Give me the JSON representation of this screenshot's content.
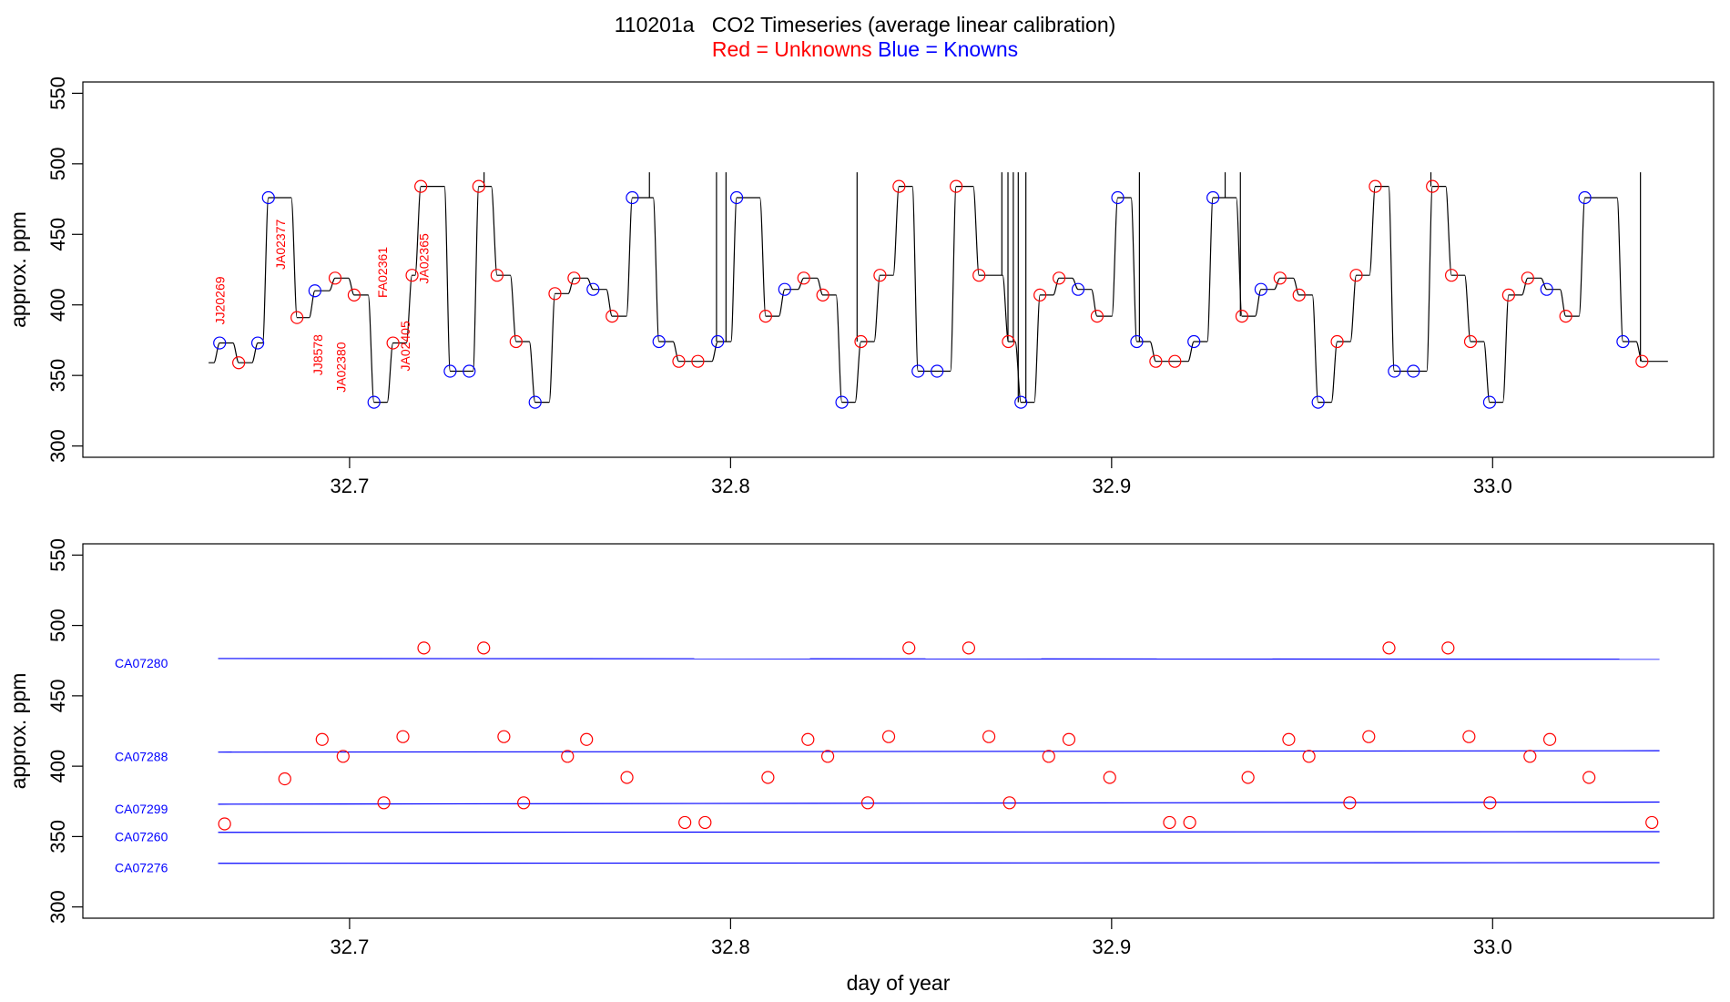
{
  "title": {
    "main": "110201a   CO2 Timeseries (average linear calibration)",
    "legend_red": "Red = Unknowns",
    "legend_blue": "Blue = Knowns"
  },
  "colors": {
    "unknown": "#ff0000",
    "known": "#0000ff",
    "trace": "#000000"
  },
  "chart_data": [
    {
      "type": "line",
      "id": "timeseries",
      "ylabel": "approx. ppm",
      "xlabel": "",
      "xlim": [
        32.63,
        33.058
      ],
      "ylim": [
        292,
        558
      ],
      "xticks": [
        {
          "v": 32.7,
          "label": "32.7"
        },
        {
          "v": 32.8,
          "label": "32.8"
        },
        {
          "v": 32.9,
          "label": "32.9"
        },
        {
          "v": 33.0,
          "label": "33.0"
        }
      ],
      "yticks": [
        {
          "v": 300,
          "label": "300"
        },
        {
          "v": 350,
          "label": "350"
        },
        {
          "v": 400,
          "label": "400"
        },
        {
          "v": 450,
          "label": "450"
        },
        {
          "v": 500,
          "label": "500"
        },
        {
          "v": 550,
          "label": "550"
        }
      ],
      "trace_start": [
        32.663,
        359
      ],
      "trace_end": 33.046,
      "levels": [
        [
          32.6655,
          373,
          "known"
        ],
        [
          32.6705,
          359,
          "unknown"
        ],
        [
          32.6755,
          373,
          "known"
        ],
        [
          32.6783,
          476,
          "known"
        ],
        [
          32.6858,
          391,
          "unknown"
        ],
        [
          32.6905,
          410,
          "known"
        ],
        [
          32.6958,
          419,
          "unknown"
        ],
        [
          32.7008,
          407,
          "unknown"
        ],
        [
          32.706,
          331,
          "known"
        ],
        [
          32.711,
          373,
          "unknown"
        ],
        [
          32.716,
          421,
          "unknown"
        ],
        [
          32.7183,
          484,
          "unknown"
        ],
        [
          32.726,
          353,
          "known"
        ],
        [
          32.731,
          353,
          "known"
        ],
        [
          32.7335,
          484,
          "unknown"
        ],
        [
          32.7383,
          421,
          "unknown"
        ],
        [
          32.7433,
          374,
          "unknown"
        ],
        [
          32.7483,
          331,
          "known"
        ],
        [
          32.7535,
          408,
          "unknown"
        ],
        [
          32.7585,
          419,
          "unknown"
        ],
        [
          32.7635,
          411,
          "known"
        ],
        [
          32.7685,
          392,
          "unknown"
        ],
        [
          32.7738,
          476,
          "known"
        ],
        [
          32.7808,
          374,
          "known"
        ],
        [
          32.786,
          360,
          "unknown"
        ],
        [
          32.791,
          360,
          "unknown"
        ],
        [
          32.7962,
          374,
          "known"
        ],
        [
          32.8012,
          476,
          "known"
        ],
        [
          32.8088,
          392,
          "unknown"
        ],
        [
          32.8138,
          411,
          "known"
        ],
        [
          32.8188,
          419,
          "unknown"
        ],
        [
          32.8238,
          407,
          "unknown"
        ],
        [
          32.8288,
          331,
          "known"
        ],
        [
          32.8338,
          374,
          "unknown"
        ],
        [
          32.8388,
          421,
          "unknown"
        ],
        [
          32.8438,
          484,
          "unknown"
        ],
        [
          32.8488,
          353,
          "known"
        ],
        [
          32.8538,
          353,
          "known"
        ],
        [
          32.8588,
          484,
          "unknown"
        ],
        [
          32.8648,
          421,
          "unknown"
        ],
        [
          32.8725,
          374,
          "unknown"
        ],
        [
          32.8758,
          331,
          "known"
        ],
        [
          32.8808,
          407,
          "unknown"
        ],
        [
          32.8858,
          419,
          "unknown"
        ],
        [
          32.8908,
          411,
          "known"
        ],
        [
          32.8958,
          392,
          "unknown"
        ],
        [
          32.9012,
          476,
          "known"
        ],
        [
          32.9062,
          374,
          "known"
        ],
        [
          32.9112,
          360,
          "unknown"
        ],
        [
          32.9162,
          360,
          "unknown"
        ],
        [
          32.9212,
          374,
          "known"
        ],
        [
          32.9262,
          476,
          "known"
        ],
        [
          32.9338,
          392,
          "unknown"
        ],
        [
          32.9388,
          411,
          "known"
        ],
        [
          32.9438,
          419,
          "unknown"
        ],
        [
          32.9488,
          407,
          "unknown"
        ],
        [
          32.9538,
          331,
          "known"
        ],
        [
          32.9588,
          374,
          "unknown"
        ],
        [
          32.9638,
          421,
          "unknown"
        ],
        [
          32.9688,
          484,
          "unknown"
        ],
        [
          32.9738,
          353,
          "known"
        ],
        [
          32.9788,
          353,
          "known"
        ],
        [
          32.9838,
          484,
          "unknown"
        ],
        [
          32.9888,
          421,
          "unknown"
        ],
        [
          32.9938,
          374,
          "unknown"
        ],
        [
          32.9988,
          331,
          "known"
        ],
        [
          33.0038,
          407,
          "unknown"
        ],
        [
          33.0088,
          419,
          "unknown"
        ],
        [
          33.0138,
          411,
          "known"
        ],
        [
          33.0188,
          392,
          "unknown"
        ],
        [
          33.0238,
          476,
          "known"
        ],
        [
          33.0338,
          374,
          "known"
        ],
        [
          33.0388,
          360,
          "unknown"
        ]
      ],
      "spikes": [
        32.7353,
        32.7787,
        32.7963,
        32.7988,
        32.8332,
        32.8712,
        32.8728,
        32.8742,
        32.8755,
        32.8775,
        32.9073,
        32.9298,
        32.9338,
        32.9838,
        33.0388
      ],
      "sample_labels": [
        {
          "text": "JJ20269",
          "x": 32.6672,
          "y": 386
        },
        {
          "text": "JA02377",
          "x": 32.683,
          "y": 425
        },
        {
          "text": "JJ8578",
          "x": 32.6928,
          "y": 350
        },
        {
          "text": "JA02380",
          "x": 32.699,
          "y": 338
        },
        {
          "text": "FA02361",
          "x": 32.7098,
          "y": 405
        },
        {
          "text": "JA02405",
          "x": 32.7158,
          "y": 353
        },
        {
          "text": "JA02365",
          "x": 32.7207,
          "y": 415
        }
      ]
    },
    {
      "type": "scatter",
      "id": "unknowns-vs-standards",
      "ylabel": "approx. ppm",
      "xlabel": "day of year",
      "xlim": [
        32.63,
        33.058
      ],
      "ylim": [
        292,
        558
      ],
      "xticks": [
        {
          "v": 32.7,
          "label": "32.7"
        },
        {
          "v": 32.8,
          "label": "32.8"
        },
        {
          "v": 32.9,
          "label": "32.9"
        },
        {
          "v": 33.0,
          "label": "33.0"
        }
      ],
      "yticks": [
        {
          "v": 300,
          "label": "300"
        },
        {
          "v": 350,
          "label": "350"
        },
        {
          "v": 400,
          "label": "400"
        },
        {
          "v": 450,
          "label": "450"
        },
        {
          "v": 500,
          "label": "500"
        },
        {
          "v": 550,
          "label": "550"
        }
      ],
      "standards": [
        {
          "name": "CA07280",
          "y_start": 476.5,
          "y_end": 476
        },
        {
          "name": "CA07288",
          "y_start": 410,
          "y_end": 411
        },
        {
          "name": "CA07299",
          "y_start": 373,
          "y_end": 374.5
        },
        {
          "name": "CA07260",
          "y_start": 353,
          "y_end": 353.5
        },
        {
          "name": "CA07276",
          "y_start": 331,
          "y_end": 331.5
        }
      ],
      "standards_x": [
        32.6655,
        33.0438
      ],
      "unknowns": [
        [
          32.6672,
          359
        ],
        [
          32.683,
          391
        ],
        [
          32.6928,
          419
        ],
        [
          32.6983,
          407
        ],
        [
          32.709,
          374
        ],
        [
          32.714,
          421
        ],
        [
          32.7195,
          484
        ],
        [
          32.7352,
          484
        ],
        [
          32.7405,
          421
        ],
        [
          32.7457,
          374
        ],
        [
          32.7572,
          407
        ],
        [
          32.7622,
          419
        ],
        [
          32.7728,
          392
        ],
        [
          32.788,
          360
        ],
        [
          32.7933,
          360
        ],
        [
          32.8098,
          392
        ],
        [
          32.8203,
          419
        ],
        [
          32.8255,
          407
        ],
        [
          32.836,
          374
        ],
        [
          32.8415,
          421
        ],
        [
          32.8468,
          484
        ],
        [
          32.8625,
          484
        ],
        [
          32.8678,
          421
        ],
        [
          32.8732,
          374
        ],
        [
          32.8835,
          407
        ],
        [
          32.8888,
          419
        ],
        [
          32.8995,
          392
        ],
        [
          32.9152,
          360
        ],
        [
          32.9205,
          360
        ],
        [
          32.9358,
          392
        ],
        [
          32.9465,
          419
        ],
        [
          32.9518,
          407
        ],
        [
          32.9625,
          374
        ],
        [
          32.9675,
          421
        ],
        [
          32.9728,
          484
        ],
        [
          32.9883,
          484
        ],
        [
          32.9938,
          421
        ],
        [
          32.9993,
          374
        ],
        [
          33.0098,
          407
        ],
        [
          33.015,
          419
        ],
        [
          33.0253,
          392
        ],
        [
          33.0418,
          360
        ]
      ]
    }
  ]
}
